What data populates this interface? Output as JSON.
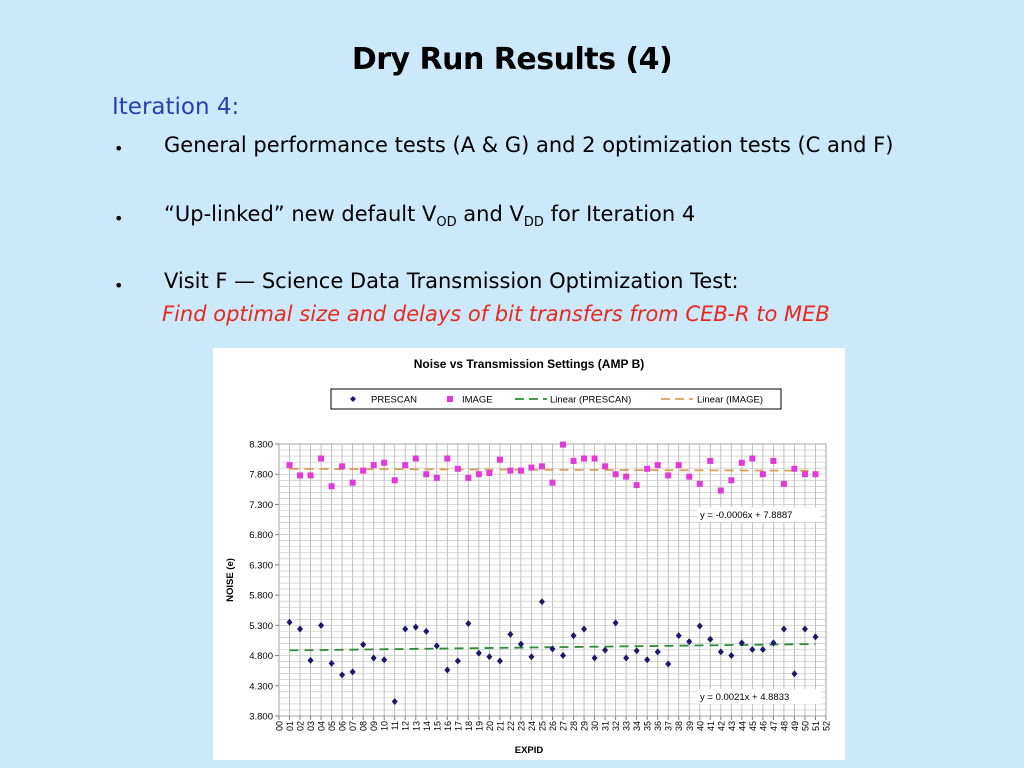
{
  "slide": {
    "title": "Dry Run Results  (4)",
    "subtitle": "Iteration 4:",
    "bullets": [
      {
        "text": "General performance tests (A & G) and 2 optimization tests (C and F)"
      },
      {
        "pre": "“Up-linked” new default V",
        "sub1": "OD",
        "mid": " and V",
        "sub2": "DD",
        "post": " for Iteration 4"
      },
      {
        "text": "Visit F — Science Data Transmission Optimization Test:"
      }
    ],
    "red_text": "Find optimal size and delays of bit transfers from CEB-R to MEB",
    "bullet_symbol": "•"
  },
  "colors": {
    "background": "#cce8fb",
    "subtitle": "#2a3fb0",
    "red_text": "#e8281c",
    "prescan": "#1a1a6b",
    "image": "#e23ad6",
    "linear_prescan": "#2e8b3a",
    "linear_image": "#d9a05a"
  },
  "chart_data": {
    "type": "scatter",
    "title": "Noise vs Transmission Settings (AMP B)",
    "xlabel": "EXPID",
    "ylabel": "NOISE (e)",
    "ylim": [
      3.8,
      8.3
    ],
    "yticks": [
      "8.300",
      "7.800",
      "7.300",
      "6.800",
      "6.300",
      "5.800",
      "5.300",
      "4.800",
      "4.300",
      "3.800"
    ],
    "yticks_values": [
      8.3,
      7.8,
      7.3,
      6.8,
      6.3,
      5.8,
      5.3,
      4.8,
      4.3,
      3.8
    ],
    "categories": [
      "00",
      "01",
      "02",
      "03",
      "04",
      "05",
      "06",
      "07",
      "08",
      "09",
      "10",
      "11",
      "12",
      "13",
      "14",
      "15",
      "16",
      "17",
      "18",
      "19",
      "20",
      "21",
      "22",
      "23",
      "24",
      "25",
      "26",
      "27",
      "28",
      "29",
      "30",
      "31",
      "32",
      "33",
      "34",
      "35",
      "36",
      "37",
      "38",
      "39",
      "40",
      "41",
      "42",
      "43",
      "44",
      "45",
      "46",
      "47",
      "48",
      "49",
      "50",
      "51",
      "52"
    ],
    "grid": true,
    "legend_position": "top",
    "series": [
      {
        "name": "PRESCAN",
        "marker": "diamond",
        "values": [
          null,
          5.35,
          5.24,
          4.72,
          5.3,
          4.67,
          4.48,
          4.53,
          4.98,
          4.76,
          4.73,
          4.04,
          5.24,
          5.27,
          5.2,
          4.96,
          4.56,
          4.71,
          5.33,
          4.84,
          4.78,
          4.71,
          5.15,
          4.99,
          4.78,
          5.69,
          4.91,
          4.8,
          5.13,
          5.24,
          4.76,
          4.89,
          5.34,
          4.76,
          4.88,
          4.73,
          4.86,
          4.66,
          5.13,
          5.03,
          5.29,
          5.07,
          4.86,
          4.8,
          5.01,
          4.9,
          4.9,
          5.01,
          5.24,
          4.5,
          5.24,
          5.11,
          null
        ]
      },
      {
        "name": "IMAGE",
        "marker": "square",
        "values": [
          null,
          7.95,
          7.78,
          7.78,
          8.06,
          7.6,
          7.93,
          7.66,
          7.86,
          7.95,
          7.99,
          7.7,
          7.95,
          8.06,
          7.8,
          7.74,
          8.06,
          7.89,
          7.74,
          7.8,
          7.82,
          8.04,
          7.86,
          7.86,
          7.91,
          7.93,
          7.66,
          8.29,
          8.02,
          8.06,
          8.06,
          7.93,
          7.8,
          7.76,
          7.62,
          7.89,
          7.95,
          7.78,
          7.95,
          7.76,
          7.64,
          8.02,
          7.53,
          7.7,
          7.99,
          8.06,
          7.8,
          8.02,
          7.64,
          7.89,
          7.8,
          7.8,
          null
        ]
      },
      {
        "name": "Linear (PRESCAN)",
        "type": "trendline",
        "equation": "y = 0.0021x + 4.8833",
        "slope": 0.0021,
        "intercept": 4.8833
      },
      {
        "name": "Linear (IMAGE)",
        "type": "trendline",
        "equation": "y = -0.0006x + 7.8887",
        "slope": -0.0006,
        "intercept": 7.8887
      }
    ],
    "annotations": [
      "y = -0.0006x + 7.8887",
      "y = 0.0021x + 4.8833"
    ]
  }
}
